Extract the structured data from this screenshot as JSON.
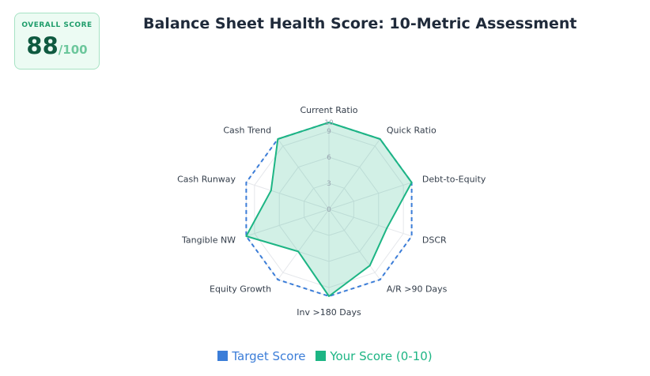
{
  "score_card": {
    "label": "OVERALL SCORE",
    "value": "88",
    "max": "/100"
  },
  "chart_data": {
    "type": "radar",
    "title": "Balance Sheet Health Score: 10-Metric Assessment",
    "categories": [
      "Current Ratio",
      "Quick Ratio",
      "Debt-to-Equity",
      "DSCR",
      "A/R >90 Days",
      "Inv >180 Days",
      "Equity Growth",
      "Tangible NW",
      "Cash Runway",
      "Cash Trend"
    ],
    "series": [
      {
        "name": "Target Score",
        "values": [
          10,
          10,
          10,
          10,
          10,
          10,
          10,
          10,
          10,
          10
        ],
        "color": "#3b7dd8",
        "style": "dashed"
      },
      {
        "name": "Your Score (0-10)",
        "values": [
          10,
          10,
          10,
          7,
          8,
          10,
          6,
          10,
          7,
          10
        ],
        "color": "#1db584",
        "style": "filled"
      }
    ],
    "radial_ticks": [
      0,
      3,
      6,
      9,
      10
    ],
    "rmax": 10,
    "legend_position": "bottom",
    "grid": true
  },
  "colors": {
    "accent": "#1db584",
    "target": "#3b7dd8",
    "title": "#1f2a3a"
  }
}
